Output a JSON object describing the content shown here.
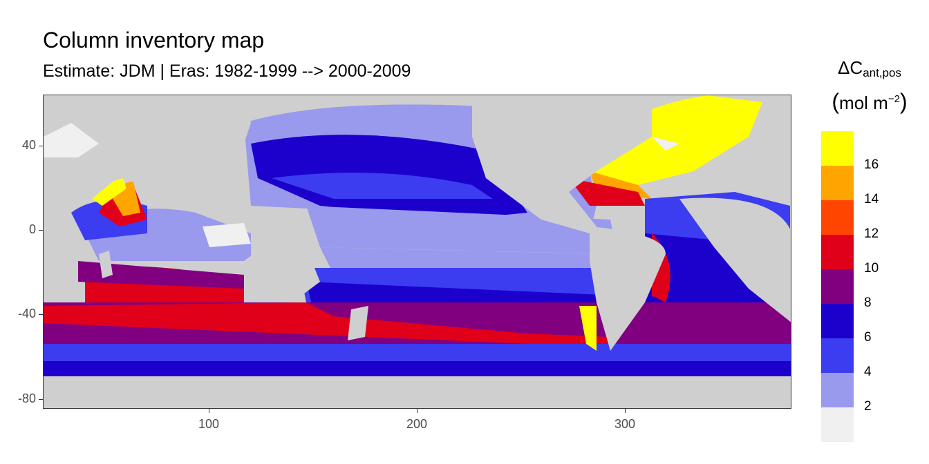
{
  "title": "Column inventory map",
  "subtitle": "Estimate: JDM  | Eras: 1982-1999 --> 2000-2009",
  "legend": {
    "symbol": "ΔC",
    "subscript": "ant,pos",
    "unit_prefix": "mol m",
    "unit_exponent": "−2",
    "open_paren": "(",
    "close_paren": ")",
    "bins": [
      {
        "color": "#ffff00",
        "label": "16"
      },
      {
        "color": "#ffa500",
        "label": "14"
      },
      {
        "color": "#ff4500",
        "label": "12"
      },
      {
        "color": "#e0001a",
        "label": "10"
      },
      {
        "color": "#800080",
        "label": "8"
      },
      {
        "color": "#1c00cc",
        "label": "6"
      },
      {
        "color": "#3c3cf0",
        "label": "4"
      },
      {
        "color": "#9999ee",
        "label": "2"
      },
      {
        "color": "#f0f0f0",
        "label": ""
      }
    ]
  },
  "axes": {
    "y_ticks": [
      "40",
      "0",
      "-40",
      "-80"
    ],
    "x_ticks": [
      "100",
      "200",
      "300"
    ],
    "xlim": [
      20,
      380
    ],
    "ylim": [
      -85,
      64
    ]
  },
  "colors": {
    "land": "#cfcfcf",
    "missing": "#f0f0f0"
  }
}
